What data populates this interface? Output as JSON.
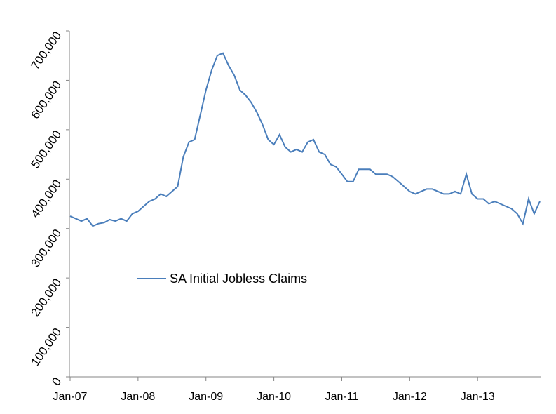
{
  "chart_data": {
    "type": "line",
    "x": [
      "2007-01",
      "2007-02",
      "2007-03",
      "2007-04",
      "2007-05",
      "2007-06",
      "2007-07",
      "2007-08",
      "2007-09",
      "2007-10",
      "2007-11",
      "2007-12",
      "2008-01",
      "2008-02",
      "2008-03",
      "2008-04",
      "2008-05",
      "2008-06",
      "2008-07",
      "2008-08",
      "2008-09",
      "2008-10",
      "2008-11",
      "2008-12",
      "2009-01",
      "2009-02",
      "2009-03",
      "2009-04",
      "2009-05",
      "2009-06",
      "2009-07",
      "2009-08",
      "2009-09",
      "2009-10",
      "2009-11",
      "2009-12",
      "2010-01",
      "2010-02",
      "2010-03",
      "2010-04",
      "2010-05",
      "2010-06",
      "2010-07",
      "2010-08",
      "2010-09",
      "2010-10",
      "2010-11",
      "2010-12",
      "2011-01",
      "2011-02",
      "2011-03",
      "2011-04",
      "2011-05",
      "2011-06",
      "2011-07",
      "2011-08",
      "2011-09",
      "2011-10",
      "2011-11",
      "2011-12",
      "2012-01",
      "2012-02",
      "2012-03",
      "2012-04",
      "2012-05",
      "2012-06",
      "2012-07",
      "2012-08",
      "2012-09",
      "2012-10",
      "2012-11",
      "2012-12",
      "2013-01",
      "2013-02",
      "2013-03",
      "2013-04",
      "2013-05",
      "2013-06",
      "2013-07",
      "2013-08",
      "2013-09",
      "2013-10",
      "2013-11",
      "2013-12"
    ],
    "series": [
      {
        "name": "SA Initial Jobless Claims",
        "color": "#4a7ebb",
        "values": [
          325000,
          320000,
          315000,
          320000,
          305000,
          310000,
          312000,
          318000,
          315000,
          320000,
          315000,
          330000,
          335000,
          345000,
          355000,
          360000,
          370000,
          365000,
          375000,
          385000,
          445000,
          475000,
          480000,
          530000,
          580000,
          620000,
          650000,
          655000,
          630000,
          610000,
          580000,
          570000,
          555000,
          535000,
          510000,
          480000,
          470000,
          490000,
          465000,
          455000,
          460000,
          455000,
          475000,
          480000,
          455000,
          450000,
          430000,
          425000,
          410000,
          395000,
          395000,
          420000,
          420000,
          420000,
          410000,
          410000,
          410000,
          405000,
          395000,
          385000,
          375000,
          370000,
          375000,
          380000,
          380000,
          375000,
          370000,
          370000,
          375000,
          370000,
          410000,
          370000,
          360000,
          360000,
          350000,
          355000,
          350000,
          345000,
          340000,
          330000,
          310000,
          360000,
          330000,
          355000
        ]
      }
    ],
    "xlim": [
      "2007-01",
      "2013-12"
    ],
    "xticks": [
      {
        "value": "2007-01",
        "label": "Jan-07"
      },
      {
        "value": "2008-01",
        "label": "Jan-08"
      },
      {
        "value": "2009-01",
        "label": "Jan-09"
      },
      {
        "value": "2010-01",
        "label": "Jan-10"
      },
      {
        "value": "2011-01",
        "label": "Jan-11"
      },
      {
        "value": "2012-01",
        "label": "Jan-12"
      },
      {
        "value": "2013-01",
        "label": "Jan-13"
      }
    ],
    "ylim": [
      0,
      700000
    ],
    "yticks": [
      0,
      {
        "value": 100000,
        "label": "100,000"
      },
      {
        "value": 200000,
        "label": "200,000"
      },
      {
        "value": 300000,
        "label": "300,000"
      },
      {
        "value": 400000,
        "label": "400,000"
      },
      {
        "value": 500000,
        "label": "500,000"
      },
      {
        "value": 600000,
        "label": "600,000"
      },
      {
        "value": 700000,
        "label": "700,000"
      }
    ]
  }
}
